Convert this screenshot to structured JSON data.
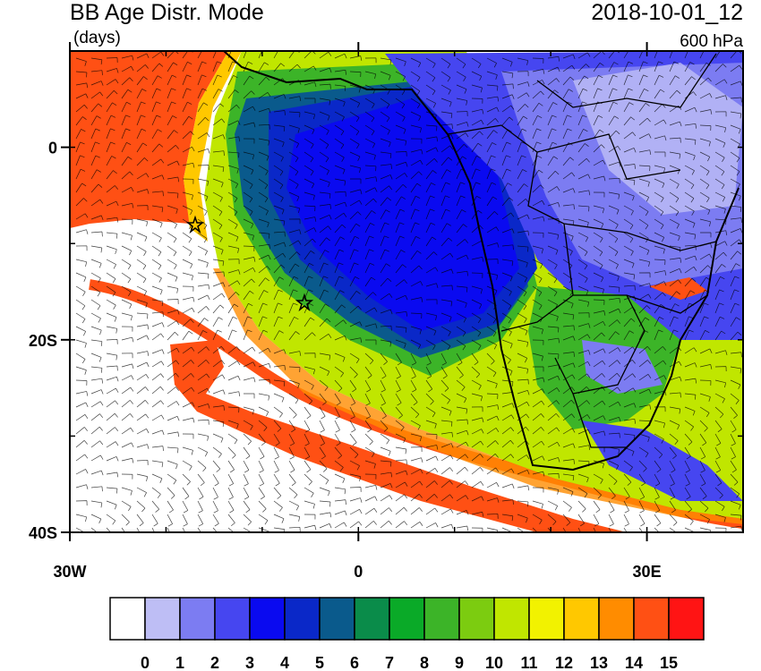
{
  "header": {
    "title": "BB Age Distr. Mode",
    "units": "(days)",
    "date": "2018-10-01_12",
    "level": "600 hPa"
  },
  "map": {
    "extent": {
      "lon": [
        -30,
        40
      ],
      "lat": [
        -40,
        10
      ]
    },
    "lon_ticks": [
      {
        "value": -30,
        "label": "30W"
      },
      0,
      {
        "value": 30,
        "label": "30E"
      }
    ],
    "lat_ticks": [
      0,
      {
        "value": -20,
        "label": "20S"
      },
      {
        "value": -40,
        "label": "40S"
      }
    ]
  },
  "colorbar": {
    "labels": [
      0,
      1,
      2,
      3,
      4,
      5,
      6,
      7,
      8,
      9,
      10,
      11,
      12,
      13,
      14,
      15
    ],
    "colors": [
      "#ffffff",
      "#bebef5",
      "#7c7cf2",
      "#4646f0",
      "#0a0af0",
      "#0a28c8",
      "#0a5a8c",
      "#0a8c4a",
      "#0aaa28",
      "#3cb428",
      "#7ccc10",
      "#c0e600",
      "#f2f200",
      "#ffc800",
      "#ff8c00",
      "#ff5014",
      "#ff1414"
    ]
  }
}
